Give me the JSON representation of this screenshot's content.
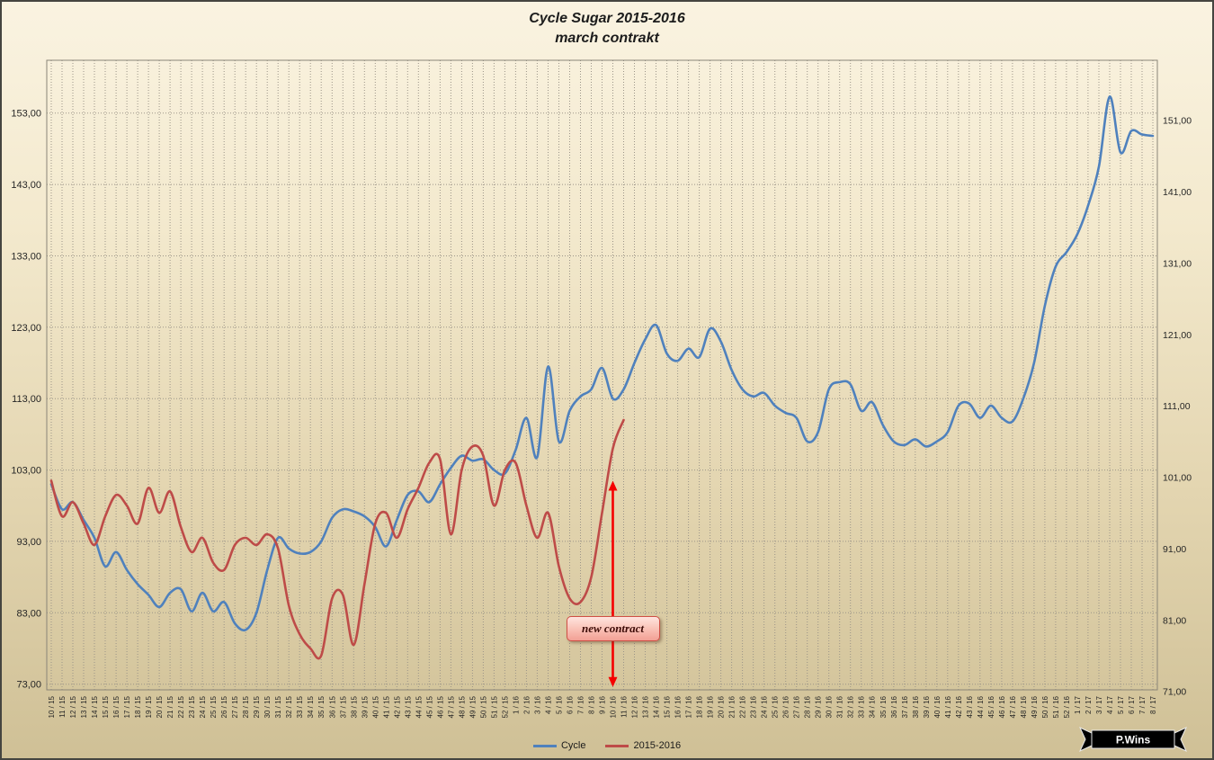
{
  "logo": {
    "label": "P.Wins"
  },
  "chart_data": {
    "type": "line",
    "title": "Cycle Sugar 2015-2016",
    "subtitle": "march contrakt",
    "xlabel": "",
    "ylabel": "",
    "grid": true,
    "legend_position": "bottom",
    "categories": [
      "10 / 15",
      "11 / 15",
      "12 / 15",
      "13 / 15",
      "14 / 15",
      "15 / 15",
      "16 / 15",
      "17 / 15",
      "18 / 15",
      "19 / 15",
      "20 / 15",
      "21 / 15",
      "22 / 15",
      "23 / 15",
      "24 / 15",
      "25 / 15",
      "26 / 15",
      "27 / 15",
      "28 / 15",
      "29 / 15",
      "30 / 15",
      "31 / 15",
      "32 / 15",
      "33 / 15",
      "34 / 15",
      "35 / 15",
      "36 / 15",
      "37 / 15",
      "38 / 15",
      "39 / 15",
      "40 / 15",
      "41 / 15",
      "42 / 15",
      "43 / 15",
      "44 / 15",
      "45 / 15",
      "46 / 15",
      "47 / 15",
      "48 / 15",
      "49 / 15",
      "50 / 15",
      "51 / 15",
      "52 / 15",
      "1 / 16",
      "2 / 16",
      "3 / 16",
      "4 / 16",
      "5 / 16",
      "6 / 16",
      "7 / 16",
      "8 / 16",
      "9 / 16",
      "10 / 16",
      "11 / 16",
      "12 / 16",
      "13 / 16",
      "14 / 16",
      "15 / 16",
      "16 / 16",
      "17 / 16",
      "18 / 16",
      "19 / 16",
      "20 / 16",
      "21 / 16",
      "22 / 16",
      "23 / 16",
      "24 / 16",
      "25 / 16",
      "26 / 16",
      "27 / 16",
      "28 / 16",
      "29 / 16",
      "30 / 16",
      "31 / 16",
      "32 / 16",
      "33 / 16",
      "34 / 16",
      "35 / 16",
      "36 / 16",
      "37 / 16",
      "38 / 16",
      "39 / 16",
      "40 / 16",
      "41 / 16",
      "42 / 16",
      "43 / 16",
      "44 / 16",
      "45 / 16",
      "46 / 16",
      "47 / 16",
      "48 / 16",
      "49 / 16",
      "50 / 16",
      "51 / 16",
      "52 / 16",
      "1 / 17",
      "2 / 17",
      "3 / 17",
      "4 / 17",
      "5 / 17",
      "6 / 17",
      "7 / 17",
      "8 / 17"
    ],
    "series": [
      {
        "name": "Cycle",
        "color": "#4F81BD",
        "values": [
          101,
          97.5,
          98.5,
          96,
          93.5,
          89.5,
          91.5,
          89,
          87,
          85.5,
          83.8,
          85.8,
          86.3,
          83.2,
          85.8,
          83.2,
          84.5,
          81.5,
          80.6,
          83,
          89,
          93.5,
          92,
          91.3,
          91.5,
          93,
          96.3,
          97.5,
          97.2,
          96.5,
          95,
          92.3,
          96,
          99.5,
          100,
          98.5,
          101,
          103.3,
          105,
          104.3,
          104.5,
          103,
          102.5,
          105.8,
          110.3,
          104.8,
          117.5,
          107,
          111.3,
          113.3,
          114.3,
          117.3,
          113,
          114.3,
          118,
          121.3,
          123.3,
          119.3,
          118.3,
          120,
          118.8,
          122.8,
          121,
          117,
          114.3,
          113.3,
          113.8,
          112,
          111,
          110.3,
          107,
          108.3,
          114.3,
          115.3,
          115,
          111.3,
          112.5,
          109.3,
          107,
          106.5,
          107.3,
          106.3,
          107,
          108.3,
          112,
          112.3,
          110.3,
          112,
          110.3,
          109.8,
          113,
          118,
          126,
          131.5,
          133.5,
          136,
          140,
          145.5,
          155.3,
          147.5,
          150.5,
          150,
          149.8
        ]
      },
      {
        "name": "2015-2016",
        "color": "#BE4B48",
        "values": [
          101.5,
          96.5,
          98.5,
          95.5,
          92.5,
          96.5,
          99.5,
          98,
          95.5,
          100.5,
          97,
          100,
          95,
          91.5,
          93.5,
          90,
          89,
          92.5,
          93.5,
          92.5,
          94,
          92,
          84,
          80,
          78,
          77,
          85,
          85.5,
          78.5,
          87,
          95.5,
          97,
          93.5,
          97.5,
          100.5,
          104,
          104.5,
          94,
          103,
          106.3,
          105,
          98,
          103,
          104,
          98,
          93.5,
          97,
          89.5,
          85,
          84.5,
          88,
          97,
          106,
          110
        ]
      }
    ],
    "y_axis_left": {
      "min": 72.2,
      "max": 160.4,
      "tick_values": [
        153,
        143,
        133,
        123,
        113,
        103,
        93,
        83,
        73
      ],
      "tick_labels": [
        "153,00",
        "143,00",
        "133,00",
        "123,00",
        "113,00",
        "103,00",
        "93,00",
        "83,00",
        "73,00"
      ]
    },
    "y_axis_right": {
      "tick_labels": [
        "151,00",
        "141,00",
        "131,00",
        "121,00",
        "111,00",
        "101,00",
        "91,00",
        "81,00",
        "71,00"
      ]
    },
    "annotation": {
      "text": "new contract",
      "category": "10 / 16",
      "category_index": 52,
      "arrow_top_value": 101.5,
      "arrow_bottom_value": 72.6,
      "arrow_color": "#F50000"
    }
  }
}
